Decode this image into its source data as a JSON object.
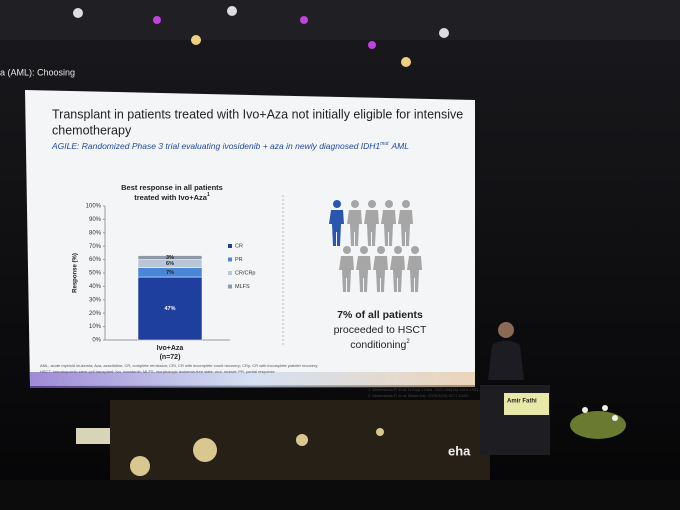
{
  "screen_header": "a (AML): Choosing",
  "slide": {
    "title_lines": [
      "Transplant in patients treated with Ivo+Aza not initially eligible for intensive",
      "chemotherapy"
    ],
    "subtitle": {
      "text": "AGILE: Randomized Phase 3 trial evaluating ivosidenib + aza in newly diagnosed IDH1",
      "sup": "mut",
      "after": "AML"
    },
    "chart": {
      "type": "stacked-bar",
      "title_lines": [
        "Best response in all patients",
        "treated with Ivo+Aza"
      ],
      "title_sup": "1",
      "y_label": "Response (%)",
      "categories": [
        "Ivo+Aza"
      ],
      "category_note": "(n=72)",
      "ylim": [
        0,
        100
      ],
      "yticks": [
        {
          "value": 0,
          "label": "0%"
        },
        {
          "value": 10,
          "label": "10%"
        },
        {
          "value": 20,
          "label": "20%"
        },
        {
          "value": 30,
          "label": "30%"
        },
        {
          "value": 40,
          "label": "40%"
        },
        {
          "value": 50,
          "label": "50%"
        },
        {
          "value": 60,
          "label": "60%"
        },
        {
          "value": 70,
          "label": "70%"
        },
        {
          "value": 80,
          "label": "80%"
        },
        {
          "value": 90,
          "label": "90%"
        },
        {
          "value": 100,
          "label": "100%"
        }
      ],
      "series": [
        {
          "name": "CR",
          "color": "#1f3f9e",
          "values": [
            47
          ],
          "value_labels": [
            "47%"
          ]
        },
        {
          "name": "PR",
          "color": "#4a86d8",
          "values": [
            7
          ],
          "value_labels": [
            "7%"
          ]
        },
        {
          "name": "CR/CRp",
          "color": "#b9c6d8",
          "values": [
            6
          ],
          "value_labels": [
            "6%"
          ]
        },
        {
          "name": "MLFS",
          "color": "#8e9aa8",
          "values": [
            3
          ],
          "value_labels": [
            "3%"
          ]
        }
      ]
    },
    "callout": {
      "text": "7% of all patients",
      "line2": "proceeded to HSCT",
      "line3": "conditioning",
      "sup": "2"
    },
    "footnote": "AML, acute myeloid leukemia; Aza, azacitidine; CR, complete remission; CRi, CR with incomplete count recovery; CRp, CR with incomplete platelet recovery;",
    "footnote2": "HSCT, hematopoietic stem cell transplant; Ivo, ivosidenib; MLFS, morphologic leukemia-free state; mut, mutant; PR, partial response",
    "references": [
      "1. Montesinos P, et al. N Engl J Med. 2022;386(16):1519-1531.",
      "2. Montesinos P, et al. Blood Adv. 2025;9(20):5177-5189."
    ]
  },
  "podium_name": "Amir Fathi",
  "logo": "eha"
}
